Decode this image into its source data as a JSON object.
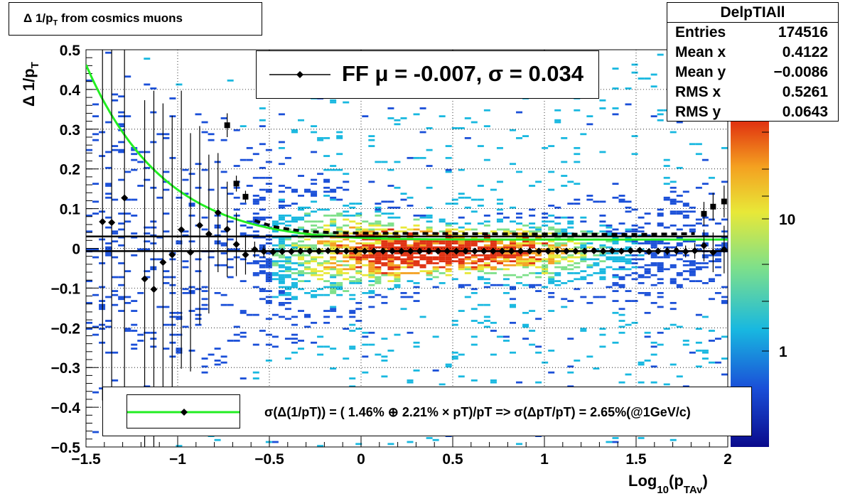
{
  "title": "Δ 1/p_T from cosmics muons",
  "stats": {
    "name": "DelpTIAll",
    "rows": [
      {
        "label": "Entries",
        "value": "174516"
      },
      {
        "label": "Mean x",
        "value": "0.4122"
      },
      {
        "label": "Mean y",
        "value": "−0.0086"
      },
      {
        "label": "RMS x",
        "value": "0.5261"
      },
      {
        "label": "RMS y",
        "value": "0.0643"
      }
    ]
  },
  "fit_legend": "FF μ = -0.007, σ =   0.034",
  "resolution_legend": "σ(Δ(1/pT)) = ( 1.46% ⊕  2.21% × pT)/pT => σ(ΔpT/pT) =  2.65%(@1GeV/c)",
  "colors": {
    "fit_curve": "#22ee22",
    "markers": "#000000",
    "palette": [
      "#0a0a8c",
      "#1a4fd8",
      "#18b8e0",
      "#7ee08a",
      "#e8e838",
      "#f4a020",
      "#e03010"
    ]
  },
  "chart_data": {
    "type": "heatmap",
    "title": "Δ 1/p_T from cosmics muons",
    "xlabel": "Log_10(p_TAv)",
    "ylabel": "Δ 1/p_T",
    "xlim": [
      -1.5,
      2
    ],
    "ylim": [
      -0.5,
      0.5
    ],
    "x_ticks": [
      "−1.5",
      "−1",
      "−0.5",
      "0",
      "0.5",
      "1",
      "1.5",
      "2"
    ],
    "y_ticks": [
      "−0.5",
      "−0.4",
      "−0.3",
      "−0.2",
      "−0.1",
      "0",
      "0.1",
      "0.2",
      "0.3",
      "0.4",
      "0.5"
    ],
    "z_scale": "log",
    "z_ticks": [
      "1",
      "10"
    ],
    "grid": true,
    "heatmap_description": "band centered at y≈-0.007, densest for x in 0 to 1",
    "mean_points": [
      {
        "x": -1.41,
        "y": 0.067,
        "err": 0.45
      },
      {
        "x": -1.36,
        "y": 0.065,
        "err": 0.5
      },
      {
        "x": -1.29,
        "y": 0.127,
        "err": 0.5
      },
      {
        "x": -1.18,
        "y": -0.077,
        "err": 0.45
      },
      {
        "x": -1.13,
        "y": -0.103,
        "err": 0.5
      },
      {
        "x": -1.08,
        "y": -0.035,
        "err": 0.4
      },
      {
        "x": -1.03,
        "y": -0.016,
        "err": 0.35
      },
      {
        "x": -0.98,
        "y": 0.047,
        "err": 0.35
      },
      {
        "x": -0.93,
        "y": -0.01,
        "err": 0.3
      },
      {
        "x": -0.88,
        "y": 0.058,
        "err": 0.25
      },
      {
        "x": -0.83,
        "y": 0.036,
        "err": 0.2
      },
      {
        "x": -0.78,
        "y": 0.09,
        "err": 0.15
      },
      {
        "x": -0.73,
        "y": 0.048,
        "err": 0.12
      },
      {
        "x": -0.68,
        "y": 0.01,
        "err": 0.08
      },
      {
        "x": -0.63,
        "y": -0.016,
        "err": 0.05
      },
      {
        "x": -0.58,
        "y": -0.003,
        "err": 0.02
      },
      {
        "x": -0.53,
        "y": -0.008,
        "err": 0.015
      },
      {
        "x": -0.48,
        "y": -0.009,
        "err": 0.01
      },
      {
        "x": -0.43,
        "y": -0.008,
        "err": 0.008
      },
      {
        "x": -0.38,
        "y": -0.008,
        "err": 0.006
      },
      {
        "x": -0.33,
        "y": -0.007,
        "err": 0.005
      },
      {
        "x": -0.28,
        "y": -0.007,
        "err": 0.004
      },
      {
        "x": -0.23,
        "y": -0.007,
        "err": 0.004
      },
      {
        "x": -0.18,
        "y": -0.006,
        "err": 0.003
      },
      {
        "x": -0.13,
        "y": -0.007,
        "err": 0.003
      },
      {
        "x": -0.08,
        "y": -0.007,
        "err": 0.003
      },
      {
        "x": -0.03,
        "y": -0.007,
        "err": 0.003
      },
      {
        "x": 0.02,
        "y": -0.007,
        "err": 0.003
      },
      {
        "x": 0.07,
        "y": -0.007,
        "err": 0.003
      },
      {
        "x": 0.12,
        "y": -0.007,
        "err": 0.003
      },
      {
        "x": 0.17,
        "y": -0.007,
        "err": 0.003
      },
      {
        "x": 0.22,
        "y": -0.007,
        "err": 0.003
      },
      {
        "x": 0.27,
        "y": -0.007,
        "err": 0.003
      },
      {
        "x": 0.32,
        "y": -0.007,
        "err": 0.003
      },
      {
        "x": 0.37,
        "y": -0.007,
        "err": 0.003
      },
      {
        "x": 0.42,
        "y": -0.007,
        "err": 0.003
      },
      {
        "x": 0.47,
        "y": -0.007,
        "err": 0.003
      },
      {
        "x": 0.52,
        "y": -0.007,
        "err": 0.003
      },
      {
        "x": 0.57,
        "y": -0.007,
        "err": 0.003
      },
      {
        "x": 0.62,
        "y": -0.007,
        "err": 0.003
      },
      {
        "x": 0.67,
        "y": -0.007,
        "err": 0.003
      },
      {
        "x": 0.72,
        "y": -0.007,
        "err": 0.003
      },
      {
        "x": 0.77,
        "y": -0.007,
        "err": 0.003
      },
      {
        "x": 0.82,
        "y": -0.007,
        "err": 0.003
      },
      {
        "x": 0.87,
        "y": -0.007,
        "err": 0.003
      },
      {
        "x": 0.92,
        "y": -0.007,
        "err": 0.003
      },
      {
        "x": 0.97,
        "y": -0.007,
        "err": 0.003
      },
      {
        "x": 1.02,
        "y": -0.007,
        "err": 0.003
      },
      {
        "x": 1.07,
        "y": -0.007,
        "err": 0.003
      },
      {
        "x": 1.12,
        "y": -0.007,
        "err": 0.003
      },
      {
        "x": 1.17,
        "y": -0.007,
        "err": 0.003
      },
      {
        "x": 1.22,
        "y": -0.007,
        "err": 0.003
      },
      {
        "x": 1.27,
        "y": -0.006,
        "err": 0.003
      },
      {
        "x": 1.32,
        "y": -0.007,
        "err": 0.004
      },
      {
        "x": 1.37,
        "y": -0.006,
        "err": 0.004
      },
      {
        "x": 1.42,
        "y": -0.007,
        "err": 0.004
      },
      {
        "x": 1.47,
        "y": -0.006,
        "err": 0.005
      },
      {
        "x": 1.52,
        "y": -0.005,
        "err": 0.006
      },
      {
        "x": 1.57,
        "y": -0.008,
        "err": 0.007
      },
      {
        "x": 1.62,
        "y": -0.007,
        "err": 0.008
      },
      {
        "x": 1.67,
        "y": -0.007,
        "err": 0.01
      },
      {
        "x": 1.72,
        "y": -0.006,
        "err": 0.012
      },
      {
        "x": 1.77,
        "y": -0.008,
        "err": 0.015
      },
      {
        "x": 1.82,
        "y": -0.006,
        "err": 0.02
      },
      {
        "x": 1.87,
        "y": 0.007,
        "err": 0.04
      },
      {
        "x": 1.92,
        "y": -0.01,
        "err": 0.05
      },
      {
        "x": 1.98,
        "y": -0.003,
        "err": 0.06
      }
    ],
    "sigma_points": [
      {
        "x": -0.73,
        "y": 0.31,
        "err": 0.03
      },
      {
        "x": -0.68,
        "y": 0.163,
        "err": 0.02
      },
      {
        "x": -0.63,
        "y": 0.13,
        "err": 0.015
      },
      {
        "x": 1.87,
        "y": 0.087,
        "err": 0.03
      },
      {
        "x": 1.92,
        "y": 0.105,
        "err": 0.035
      },
      {
        "x": 1.98,
        "y": 0.118,
        "err": 0.04
      }
    ],
    "sigma_dashed": [
      {
        "x": -0.58,
        "y": 0.07
      },
      {
        "x": -0.48,
        "y": 0.055
      },
      {
        "x": -0.38,
        "y": 0.047
      },
      {
        "x": -0.28,
        "y": 0.042
      },
      {
        "x": -0.18,
        "y": 0.04
      },
      {
        "x": -0.08,
        "y": 0.039
      },
      {
        "x": 0.02,
        "y": 0.038
      },
      {
        "x": 0.5,
        "y": 0.037
      },
      {
        "x": 1.0,
        "y": 0.036
      },
      {
        "x": 1.5,
        "y": 0.035
      },
      {
        "x": 1.82,
        "y": 0.037
      }
    ],
    "fit_mean": -0.007,
    "fit_sigma": 0.034,
    "fit_curve": {
      "a": 0.0146,
      "b": 0.0221,
      "note": "sigma(1/pT) = sqrt(a^2 + (b*pT)^2)/pT"
    }
  }
}
